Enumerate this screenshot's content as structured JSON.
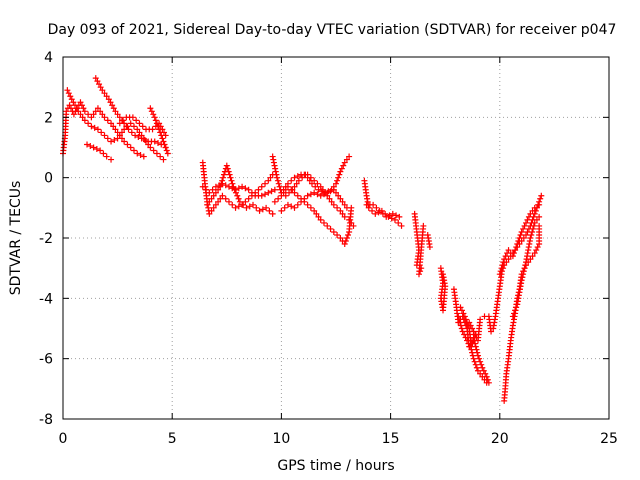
{
  "chart_data": {
    "type": "scatter",
    "title": "Day 093 of 2021, Sidereal Day-to-day VTEC variation (SDTVAR) for receiver p047",
    "xlabel": "GPS time / hours",
    "ylabel": "SDTVAR / TECUs",
    "xlim": [
      0,
      25
    ],
    "ylim": [
      -8,
      4
    ],
    "xticks": [
      "0",
      "5",
      "10",
      "15",
      "20",
      "25"
    ],
    "yticks": [
      "-8",
      "-6",
      "-4",
      "-2",
      "0",
      "2",
      "4"
    ],
    "grid": true,
    "marker": "+",
    "color": "#ff0000",
    "tracks": [
      {
        "name": "track-1",
        "points": [
          [
            0.0,
            0.8
          ],
          [
            0.1,
            1.4
          ],
          [
            0.15,
            2.2
          ],
          [
            0.3,
            2.4
          ],
          [
            0.5,
            2.1
          ],
          [
            0.8,
            2.5
          ],
          [
            1.0,
            2.2
          ],
          [
            1.3,
            2.0
          ],
          [
            1.6,
            2.3
          ],
          [
            1.9,
            2.0
          ],
          [
            2.2,
            1.8
          ],
          [
            2.5,
            1.5
          ],
          [
            2.8,
            1.2
          ],
          [
            3.1,
            1.0
          ],
          [
            3.4,
            0.8
          ],
          [
            3.7,
            0.7
          ]
        ]
      },
      {
        "name": "track-2",
        "points": [
          [
            0.2,
            2.9
          ],
          [
            0.4,
            2.6
          ],
          [
            0.7,
            2.2
          ],
          [
            1.0,
            1.9
          ],
          [
            1.3,
            1.7
          ],
          [
            1.6,
            1.6
          ],
          [
            1.9,
            1.4
          ],
          [
            2.2,
            1.2
          ],
          [
            2.5,
            1.3
          ],
          [
            2.8,
            1.6
          ],
          [
            3.1,
            1.8
          ],
          [
            3.4,
            1.6
          ],
          [
            3.7,
            1.3
          ],
          [
            4.0,
            1.0
          ],
          [
            4.3,
            0.8
          ],
          [
            4.6,
            0.6
          ]
        ]
      },
      {
        "name": "track-3",
        "points": [
          [
            1.5,
            3.3
          ],
          [
            1.8,
            2.9
          ],
          [
            2.1,
            2.6
          ],
          [
            2.4,
            2.2
          ],
          [
            2.7,
            1.9
          ],
          [
            3.0,
            1.6
          ],
          [
            3.3,
            1.4
          ],
          [
            3.6,
            1.3
          ],
          [
            3.9,
            1.2
          ],
          [
            4.2,
            1.2
          ],
          [
            4.5,
            1.1
          ],
          [
            4.7,
            1.0
          ]
        ]
      },
      {
        "name": "track-4",
        "points": [
          [
            1.1,
            1.1
          ],
          [
            1.4,
            1.0
          ],
          [
            1.7,
            0.9
          ],
          [
            2.0,
            0.7
          ],
          [
            2.2,
            0.6
          ]
        ]
      },
      {
        "name": "track-5",
        "points": [
          [
            2.6,
            1.8
          ],
          [
            2.9,
            2.0
          ],
          [
            3.2,
            2.0
          ],
          [
            3.5,
            1.8
          ],
          [
            3.8,
            1.6
          ],
          [
            4.1,
            1.6
          ],
          [
            4.4,
            1.8
          ],
          [
            4.7,
            1.4
          ]
        ]
      },
      {
        "name": "track-6",
        "points": [
          [
            4.0,
            2.3
          ],
          [
            4.2,
            2.0
          ],
          [
            4.4,
            1.6
          ],
          [
            4.6,
            1.2
          ],
          [
            4.8,
            0.8
          ]
        ]
      },
      {
        "name": "track-7",
        "points": [
          [
            6.4,
            0.5
          ],
          [
            6.5,
            -0.2
          ],
          [
            6.6,
            -0.8
          ],
          [
            6.7,
            -1.2
          ],
          [
            7.0,
            -0.9
          ],
          [
            7.3,
            -0.6
          ],
          [
            7.6,
            -0.8
          ],
          [
            7.9,
            -1.0
          ],
          [
            8.2,
            -0.9
          ],
          [
            8.5,
            -0.7
          ],
          [
            8.8,
            -0.5
          ],
          [
            9.1,
            -0.3
          ],
          [
            9.4,
            -0.1
          ],
          [
            9.6,
            0.1
          ]
        ]
      },
      {
        "name": "track-8",
        "points": [
          [
            6.4,
            -0.3
          ],
          [
            6.7,
            -0.5
          ],
          [
            7.0,
            -0.3
          ],
          [
            7.3,
            -0.2
          ],
          [
            7.6,
            -0.3
          ],
          [
            7.9,
            -0.4
          ],
          [
            8.2,
            -0.3
          ],
          [
            8.5,
            -0.4
          ],
          [
            8.8,
            -0.6
          ],
          [
            9.1,
            -0.6
          ],
          [
            9.4,
            -0.5
          ],
          [
            9.7,
            -0.4
          ]
        ]
      },
      {
        "name": "track-9",
        "points": [
          [
            6.6,
            -0.9
          ],
          [
            6.9,
            -0.6
          ],
          [
            7.2,
            -0.3
          ],
          [
            7.5,
            0.4
          ],
          [
            7.8,
            -0.3
          ],
          [
            8.1,
            -0.8
          ],
          [
            8.4,
            -1.0
          ],
          [
            8.7,
            -0.9
          ],
          [
            9.0,
            -1.1
          ],
          [
            9.3,
            -1.0
          ],
          [
            9.6,
            -1.2
          ]
        ]
      },
      {
        "name": "track-10",
        "points": [
          [
            9.6,
            0.7
          ],
          [
            9.8,
            0.0
          ],
          [
            10.0,
            -0.5
          ],
          [
            10.3,
            -0.2
          ],
          [
            10.6,
            0.0
          ],
          [
            10.9,
            0.1
          ],
          [
            11.2,
            0.1
          ],
          [
            11.5,
            -0.1
          ],
          [
            11.8,
            -0.3
          ],
          [
            12.1,
            -0.6
          ],
          [
            12.4,
            -0.9
          ],
          [
            12.7,
            -1.1
          ],
          [
            12.9,
            -1.3
          ],
          [
            13.1,
            -1.4
          ],
          [
            13.3,
            -1.6
          ]
        ]
      },
      {
        "name": "track-11",
        "points": [
          [
            9.7,
            -0.8
          ],
          [
            10.0,
            -0.6
          ],
          [
            10.3,
            -0.3
          ],
          [
            10.6,
            -0.5
          ],
          [
            10.9,
            -0.7
          ],
          [
            11.2,
            -0.9
          ],
          [
            11.5,
            -1.1
          ],
          [
            11.8,
            -1.4
          ],
          [
            12.1,
            -1.6
          ],
          [
            12.4,
            -1.8
          ],
          [
            12.7,
            -2.0
          ],
          [
            12.9,
            -2.2
          ],
          [
            13.1,
            -1.8
          ],
          [
            13.2,
            -1.0
          ]
        ]
      },
      {
        "name": "track-12",
        "points": [
          [
            10.2,
            -0.6
          ],
          [
            10.5,
            -0.4
          ],
          [
            10.8,
            -0.1
          ],
          [
            11.1,
            0.1
          ],
          [
            11.4,
            -0.2
          ],
          [
            11.7,
            -0.4
          ],
          [
            12.0,
            -0.5
          ],
          [
            12.3,
            -0.4
          ],
          [
            12.5,
            -0.2
          ],
          [
            12.7,
            0.2
          ],
          [
            12.9,
            0.5
          ],
          [
            13.1,
            0.7
          ]
        ]
      },
      {
        "name": "track-13",
        "points": [
          [
            10.0,
            -1.1
          ],
          [
            10.3,
            -0.9
          ],
          [
            10.6,
            -1.0
          ],
          [
            10.9,
            -0.8
          ],
          [
            11.2,
            -0.6
          ],
          [
            11.5,
            -0.5
          ],
          [
            11.8,
            -0.6
          ],
          [
            12.1,
            -0.5
          ],
          [
            12.4,
            -0.4
          ],
          [
            12.6,
            -0.6
          ],
          [
            12.8,
            -0.8
          ],
          [
            13.0,
            -1.0
          ]
        ]
      },
      {
        "name": "track-14",
        "points": [
          [
            13.8,
            -0.1
          ],
          [
            13.9,
            -0.6
          ],
          [
            14.0,
            -1.0
          ],
          [
            14.3,
            -1.2
          ],
          [
            14.6,
            -1.1
          ],
          [
            14.9,
            -1.3
          ],
          [
            15.2,
            -1.4
          ],
          [
            15.5,
            -1.6
          ]
        ]
      },
      {
        "name": "track-15",
        "points": [
          [
            13.9,
            -0.9
          ],
          [
            14.2,
            -0.9
          ],
          [
            14.5,
            -1.1
          ],
          [
            14.8,
            -1.3
          ],
          [
            15.1,
            -1.2
          ],
          [
            15.4,
            -1.3
          ]
        ]
      },
      {
        "name": "track-16",
        "points": [
          [
            16.1,
            -1.2
          ],
          [
            16.2,
            -1.8
          ],
          [
            16.3,
            -2.4
          ],
          [
            16.2,
            -2.9
          ],
          [
            16.4,
            -3.0
          ],
          [
            16.3,
            -3.2
          ],
          [
            16.5,
            -1.6
          ]
        ]
      },
      {
        "name": "track-17",
        "points": [
          [
            16.7,
            -1.9
          ],
          [
            16.8,
            -2.3
          ]
        ]
      },
      {
        "name": "track-18",
        "points": [
          [
            17.3,
            -3.0
          ],
          [
            17.4,
            -3.5
          ],
          [
            17.3,
            -4.0
          ],
          [
            17.4,
            -4.4
          ],
          [
            17.5,
            -3.6
          ],
          [
            17.4,
            -3.2
          ]
        ]
      },
      {
        "name": "track-19",
        "points": [
          [
            17.9,
            -3.7
          ],
          [
            18.0,
            -4.2
          ],
          [
            18.1,
            -4.8
          ],
          [
            18.3,
            -4.6
          ],
          [
            18.5,
            -5.0
          ],
          [
            18.6,
            -5.6
          ],
          [
            18.8,
            -5.3
          ],
          [
            19.0,
            -5.9
          ],
          [
            19.2,
            -6.3
          ],
          [
            19.4,
            -6.6
          ],
          [
            19.5,
            -6.8
          ]
        ]
      },
      {
        "name": "track-20",
        "points": [
          [
            18.1,
            -4.6
          ],
          [
            18.3,
            -5.1
          ],
          [
            18.5,
            -5.4
          ],
          [
            18.7,
            -5.7
          ],
          [
            18.8,
            -6.0
          ],
          [
            19.0,
            -6.4
          ],
          [
            19.2,
            -6.6
          ],
          [
            19.4,
            -6.8
          ]
        ]
      },
      {
        "name": "track-21",
        "points": [
          [
            18.6,
            -4.8
          ],
          [
            18.8,
            -5.1
          ],
          [
            19.0,
            -5.4
          ],
          [
            19.1,
            -4.7
          ],
          [
            19.3,
            -4.6
          ],
          [
            19.5,
            -4.6
          ],
          [
            19.6,
            -5.1
          ]
        ]
      },
      {
        "name": "track-22",
        "points": [
          [
            18.2,
            -4.3
          ],
          [
            18.4,
            -4.6
          ],
          [
            18.6,
            -5.0
          ],
          [
            18.7,
            -5.6
          ],
          [
            18.9,
            -5.2
          ]
        ]
      },
      {
        "name": "track-23",
        "points": [
          [
            20.2,
            -7.4
          ],
          [
            20.25,
            -7.0
          ],
          [
            20.3,
            -6.5
          ],
          [
            20.4,
            -6.0
          ],
          [
            20.5,
            -5.4
          ],
          [
            20.6,
            -4.9
          ],
          [
            20.7,
            -4.5
          ],
          [
            20.8,
            -4.0
          ],
          [
            20.9,
            -3.7
          ],
          [
            21.0,
            -3.2
          ],
          [
            21.2,
            -2.9
          ],
          [
            21.4,
            -2.7
          ],
          [
            21.6,
            -2.5
          ],
          [
            21.8,
            -2.2
          ],
          [
            21.8,
            -1.6
          ]
        ]
      },
      {
        "name": "track-24",
        "points": [
          [
            19.7,
            -5.0
          ],
          [
            19.8,
            -4.6
          ],
          [
            19.9,
            -4.1
          ],
          [
            20.0,
            -3.6
          ],
          [
            20.1,
            -3.1
          ],
          [
            20.2,
            -2.9
          ],
          [
            20.4,
            -2.7
          ],
          [
            20.6,
            -2.5
          ],
          [
            20.8,
            -2.3
          ],
          [
            21.0,
            -2.1
          ],
          [
            21.2,
            -1.9
          ],
          [
            21.4,
            -1.6
          ],
          [
            21.6,
            -1.2
          ],
          [
            21.8,
            -0.8
          ],
          [
            21.9,
            -0.6
          ]
        ]
      },
      {
        "name": "track-25",
        "points": [
          [
            20.0,
            -3.2
          ],
          [
            20.2,
            -2.7
          ],
          [
            20.4,
            -2.4
          ],
          [
            20.6,
            -2.6
          ],
          [
            20.8,
            -2.2
          ],
          [
            21.0,
            -1.8
          ],
          [
            21.2,
            -1.5
          ],
          [
            21.4,
            -1.2
          ],
          [
            21.6,
            -1.0
          ],
          [
            21.8,
            -0.9
          ]
        ]
      },
      {
        "name": "track-26",
        "points": [
          [
            20.6,
            -4.6
          ],
          [
            20.8,
            -4.2
          ],
          [
            21.0,
            -3.4
          ],
          [
            21.2,
            -2.8
          ],
          [
            21.4,
            -2.0
          ],
          [
            21.6,
            -1.5
          ],
          [
            21.8,
            -1.3
          ]
        ]
      }
    ]
  }
}
